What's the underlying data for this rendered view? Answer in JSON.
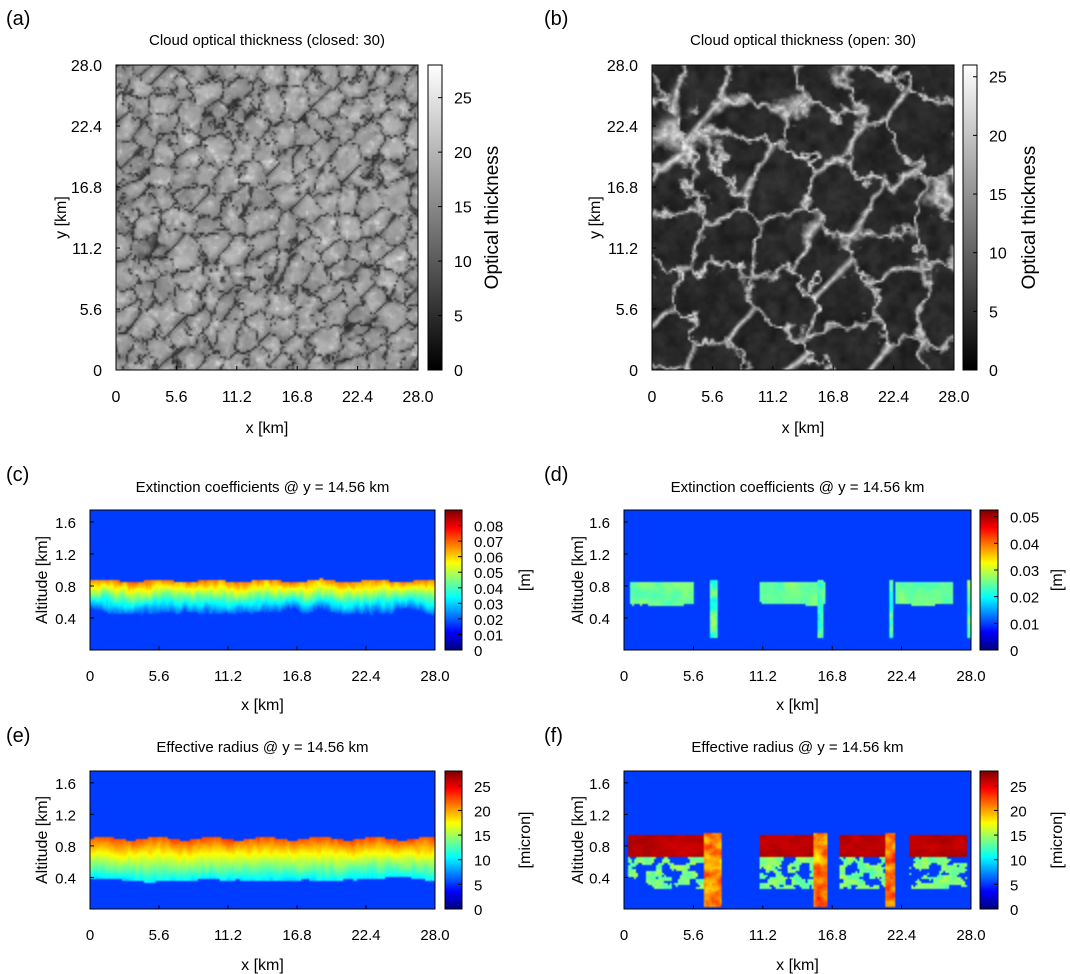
{
  "chart_data": [
    {
      "panel_label": "(a)",
      "type": "heatmap",
      "title": "Cloud optical thickness (closed: 30)",
      "xlabel": "x [km]",
      "ylabel": "y [km]",
      "colorbar_label": "Optical thickness",
      "colormap": "grayscale",
      "pattern": "closed-cell",
      "x_ticks": [
        "0",
        "5.6",
        "11.2",
        "16.8",
        "22.4",
        "28.0"
      ],
      "y_ticks": [
        "0",
        "5.6",
        "11.2",
        "16.8",
        "22.4",
        "28.0"
      ],
      "colorbar_ticks": [
        "0",
        "5",
        "10",
        "15",
        "20",
        "25"
      ],
      "xlim": [
        0,
        28.0
      ],
      "ylim": [
        0,
        28.0
      ],
      "clim": [
        0,
        28
      ]
    },
    {
      "panel_label": "(b)",
      "type": "heatmap",
      "title": "Cloud optical thickness (open: 30)",
      "xlabel": "x [km]",
      "ylabel": "y [km]",
      "colorbar_label": "Optical thickness",
      "colormap": "grayscale",
      "pattern": "open-cell",
      "x_ticks": [
        "0",
        "5.6",
        "11.2",
        "16.8",
        "22.4",
        "28.0"
      ],
      "y_ticks": [
        "0",
        "5.6",
        "11.2",
        "16.8",
        "22.4",
        "28.0"
      ],
      "colorbar_ticks": [
        "0",
        "5",
        "10",
        "15",
        "20",
        "25"
      ],
      "xlim": [
        0,
        28.0
      ],
      "ylim": [
        0,
        28.0
      ],
      "clim": [
        0,
        26
      ]
    },
    {
      "panel_label": "(c)",
      "type": "heatmap",
      "title": "Extinction coefficients @ y = 14.56 km",
      "xlabel": "x [km]",
      "ylabel": "Altitude [km]",
      "colorbar_label": "[m]",
      "colormap": "jet",
      "pattern": "closed-extinction",
      "x_ticks": [
        "0",
        "5.6",
        "11.2",
        "16.8",
        "22.4",
        "28.0"
      ],
      "y_ticks": [
        "0.4",
        "0.8",
        "1.2",
        "1.6"
      ],
      "colorbar_ticks": [
        "0",
        "0.01",
        "0.02",
        "0.03",
        "0.04",
        "0.05",
        "0.06",
        "0.07",
        "0.08"
      ],
      "xlim": [
        0,
        28.0
      ],
      "ylim": [
        0,
        1.75
      ],
      "clim": [
        0,
        0.09
      ]
    },
    {
      "panel_label": "(d)",
      "type": "heatmap",
      "title": "Extinction coefficients @ y = 14.56 km",
      "xlabel": "x [km]",
      "ylabel": "Altitude [km]",
      "colorbar_label": "[m]",
      "colormap": "jet",
      "pattern": "open-extinction",
      "x_ticks": [
        "0",
        "5.6",
        "11.2",
        "16.8",
        "22.4",
        "28.0"
      ],
      "y_ticks": [
        "0.4",
        "0.8",
        "1.2",
        "1.6"
      ],
      "colorbar_ticks": [
        "0",
        "0.01",
        "0.02",
        "0.03",
        "0.04",
        "0.05"
      ],
      "xlim": [
        0,
        28.0
      ],
      "ylim": [
        0,
        1.75
      ],
      "clim": [
        0,
        0.0525
      ]
    },
    {
      "panel_label": "(e)",
      "type": "heatmap",
      "title": "Effective radius @ y = 14.56 km",
      "xlabel": "x [km]",
      "ylabel": "Altitude [km]",
      "colorbar_label": "[micron]",
      "colormap": "jet",
      "pattern": "closed-radius",
      "x_ticks": [
        "0",
        "5.6",
        "11.2",
        "16.8",
        "22.4",
        "28.0"
      ],
      "y_ticks": [
        "0.4",
        "0.8",
        "1.2",
        "1.6"
      ],
      "colorbar_ticks": [
        "0",
        "5",
        "10",
        "15",
        "20",
        "25"
      ],
      "xlim": [
        0,
        28.0
      ],
      "ylim": [
        0,
        1.75
      ],
      "clim": [
        0,
        28
      ]
    },
    {
      "panel_label": "(f)",
      "type": "heatmap",
      "title": "Effective radius @ y = 14.56 km",
      "xlabel": "x [km]",
      "ylabel": "Altitude [km]",
      "colorbar_label": "[micron]",
      "colormap": "jet",
      "pattern": "open-radius",
      "x_ticks": [
        "0",
        "5.6",
        "11.2",
        "16.8",
        "22.4",
        "28.0"
      ],
      "y_ticks": [
        "0.4",
        "0.8",
        "1.2",
        "1.6"
      ],
      "colorbar_ticks": [
        "0",
        "5",
        "10",
        "15",
        "20",
        "25"
      ],
      "xlim": [
        0,
        28.0
      ],
      "ylim": [
        0,
        1.75
      ],
      "clim": [
        0,
        28
      ]
    }
  ]
}
